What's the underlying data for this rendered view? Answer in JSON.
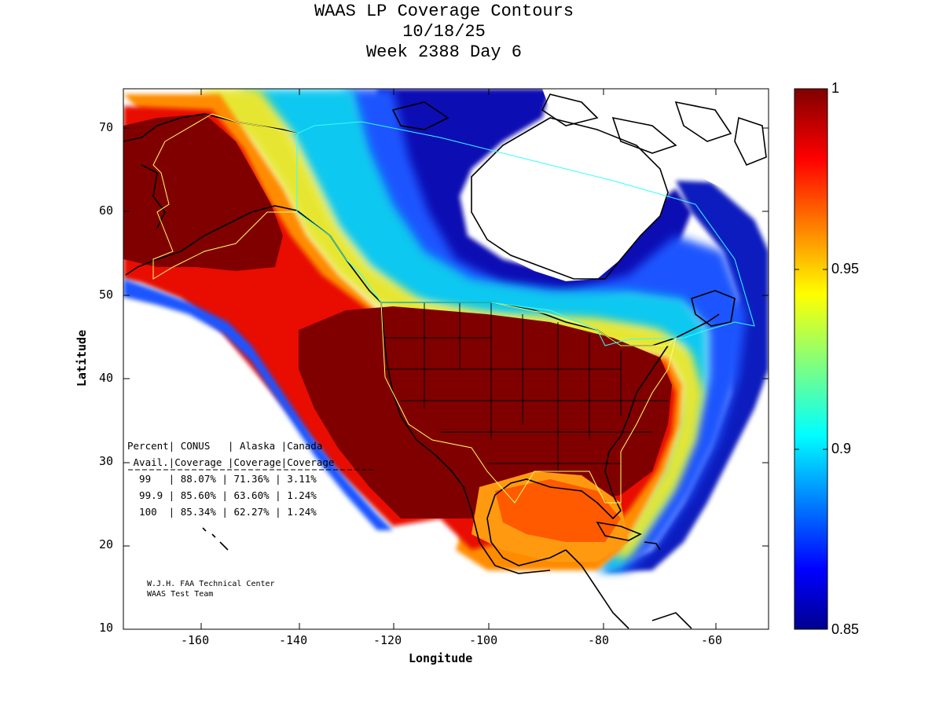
{
  "title": {
    "line1": "WAAS LP Coverage Contours",
    "line2": "10/18/25",
    "line3": "Week 2388 Day 6"
  },
  "axes": {
    "xlabel": "Longitude",
    "ylabel": "Latitude",
    "xlim": [
      -175,
      -50
    ],
    "ylim": [
      10,
      75
    ],
    "xticks": [
      "-160",
      "-140",
      "-120",
      "-100",
      "-80",
      "-60"
    ],
    "yticks": [
      "10",
      "20",
      "30",
      "40",
      "50",
      "60",
      "70"
    ]
  },
  "colorbar": {
    "range": [
      0.85,
      1
    ],
    "ticks": [
      "0.85",
      "0.9",
      "0.95",
      "1"
    ],
    "colormap": "jet"
  },
  "table": {
    "header1": "Percent| CONUS   | Alaska |Canada",
    "header2": " Avail.|Coverage |Coverage|Coverage",
    "rows": [
      "  99   | 88.07% | 71.36% | 3.11%",
      "  99.9 | 85.60% | 63.60% | 1.24%",
      "  100  | 85.34% | 62.27% | 1.24%"
    ]
  },
  "credit": {
    "line1": "W.J.H. FAA Technical Center",
    "line2": "WAAS Test Team"
  },
  "colors": {
    "max": "#800000",
    "red": "#e61000",
    "orange": "#ff8c00",
    "yellow": "#f5f500",
    "cyan": "#00e6e6",
    "lightblue": "#19b4ff",
    "blue": "#1f5aff",
    "darkblue": "#0d1fc8",
    "navy": "#00008c"
  }
}
